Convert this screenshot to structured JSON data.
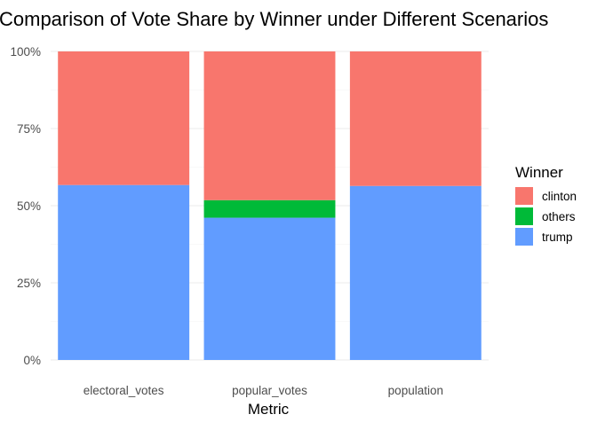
{
  "chart_data": {
    "type": "bar",
    "stacked": "percent",
    "title": "Comparison of Vote Share by Winner under Different Scenarios",
    "xlabel": "Metric",
    "ylabel": "",
    "categories": [
      "electoral_votes",
      "popular_votes",
      "population"
    ],
    "ylim": [
      0,
      1
    ],
    "yticks": [
      0,
      0.25,
      0.5,
      0.75,
      1
    ],
    "ytick_labels": [
      "0%",
      "25%",
      "50%",
      "75%",
      "100%"
    ],
    "grid": true,
    "legend": {
      "title": "Winner",
      "position": "right"
    },
    "series": [
      {
        "name": "trump",
        "color": "#619CFF",
        "values": [
          0.567,
          0.461,
          0.564
        ]
      },
      {
        "name": "others",
        "color": "#00BA38",
        "values": [
          0.0,
          0.057,
          0.0
        ]
      },
      {
        "name": "clinton",
        "color": "#F8766D",
        "values": [
          0.433,
          0.482,
          0.436
        ]
      }
    ],
    "legend_order": [
      "clinton",
      "others",
      "trump"
    ]
  }
}
